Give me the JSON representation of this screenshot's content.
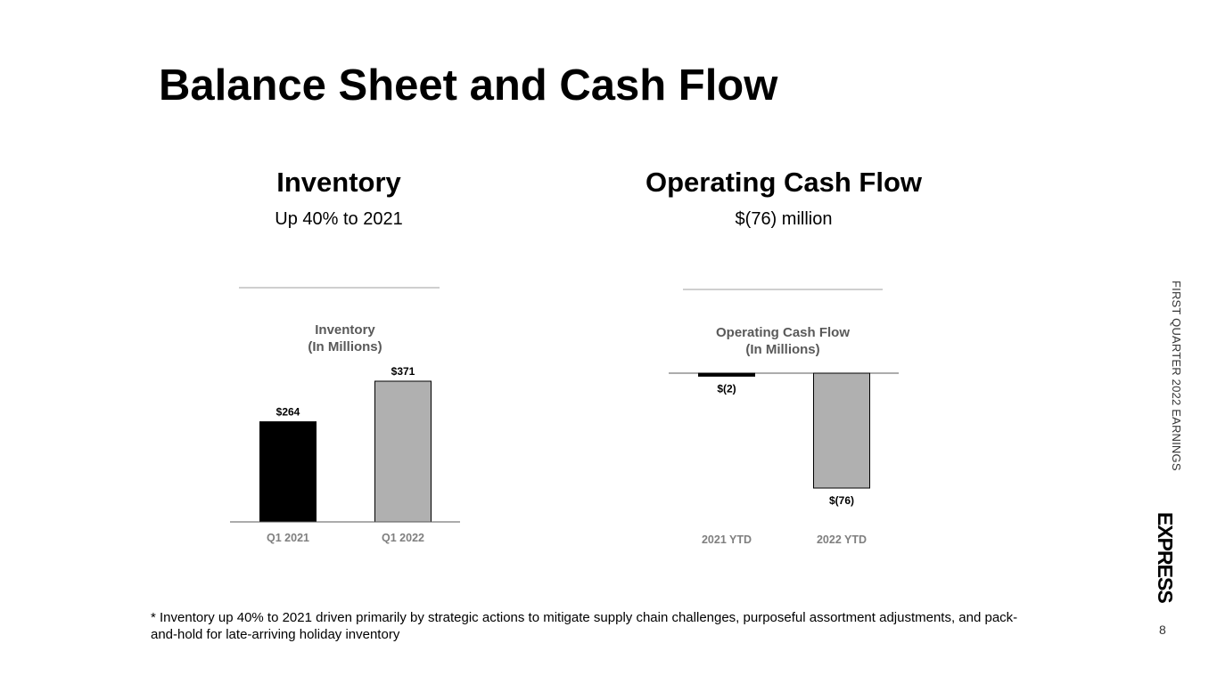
{
  "slide": {
    "title": "Balance Sheet and Cash Flow",
    "side_label": "FIRST QUARTER 2022 EARNINGS",
    "brand": "EXPRESS",
    "page_number": "8",
    "footnote": "* Inventory up 40% to 2021 driven primarily by strategic actions to mitigate supply chain challenges, purposeful assortment adjustments, and pack-and-hold for late-arriving holiday inventory"
  },
  "sections": {
    "inventory": {
      "heading": "Inventory",
      "subheading": "Up 40% to 2021"
    },
    "cash_flow": {
      "heading": "Operating Cash Flow",
      "subheading": "$(76) million"
    }
  },
  "colors": {
    "black": "#000000",
    "grey_bar": "#b0b0b0",
    "axis": "#595959",
    "muted_text": "#7f7f7f"
  },
  "chart_data": [
    {
      "type": "bar",
      "title": "Inventory",
      "subtitle": "(In Millions)",
      "categories": [
        "Q1 2021",
        "Q1 2022"
      ],
      "values": [
        264,
        371
      ],
      "data_labels": [
        "$264",
        "$371"
      ],
      "bar_colors": [
        "#000000",
        "#b0b0b0"
      ],
      "ylim": [
        0,
        420
      ],
      "grid": false
    },
    {
      "type": "bar",
      "title": "Operating Cash Flow",
      "subtitle": "(In Millions)",
      "categories": [
        "2021 YTD",
        "2022 YTD"
      ],
      "values": [
        -2,
        -76
      ],
      "data_labels": [
        "$(2)",
        "$(76)"
      ],
      "bar_colors": [
        "#000000",
        "#b0b0b0"
      ],
      "ylim": [
        -76,
        0
      ],
      "grid": false
    }
  ]
}
